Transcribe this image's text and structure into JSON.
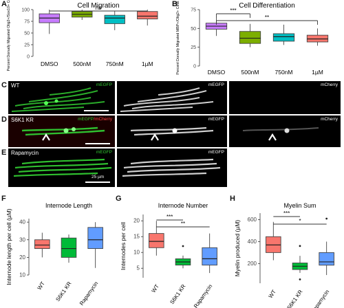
{
  "figure": {
    "panelA": {
      "letter": "A",
      "chart_data": {
        "type": "box",
        "title": "Cell Migration",
        "ylabel": "Percent Dorsally Migrated Olig2+/Sox10+ Cells",
        "categories": [
          "DMSO",
          "500nM",
          "750nM",
          "1µM"
        ],
        "colors": [
          "#c77cff",
          "#7cae00",
          "#00bfc4",
          "#f8766d"
        ],
        "ylim": [
          0,
          100
        ],
        "yticks": [
          0,
          25,
          50,
          75,
          100
        ],
        "boxes": [
          {
            "min": 48,
            "q1": 72,
            "median": 82,
            "q3": 91,
            "max": 100
          },
          {
            "min": 78,
            "q1": 84,
            "median": 90,
            "q3": 96,
            "max": 100
          },
          {
            "min": 56,
            "q1": 70,
            "median": 82,
            "q3": 88,
            "max": 97
          },
          {
            "min": 66,
            "q1": 80,
            "median": 86,
            "q3": 96,
            "max": 100
          }
        ],
        "significance": [
          {
            "from": 0,
            "to": 3,
            "label": "ns"
          }
        ]
      }
    },
    "panelB": {
      "letter": "B",
      "chart_data": {
        "type": "box",
        "title": "Cell Differentiation",
        "ylabel": "Percent Dorsally Migrated MBP+/Olig2+ Cells",
        "categories": [
          "DMSO",
          "500nM",
          "750nM",
          "1µM"
        ],
        "colors": [
          "#c77cff",
          "#7cae00",
          "#00bfc4",
          "#f8766d"
        ],
        "ylim": [
          0,
          75
        ],
        "yticks": [
          0,
          25,
          50,
          75
        ],
        "boxes": [
          {
            "min": 40,
            "q1": 49,
            "median": 53,
            "q3": 57,
            "max": 64
          },
          {
            "min": 25,
            "q1": 30,
            "median": 37,
            "q3": 46,
            "max": 56
          },
          {
            "min": 28,
            "q1": 33,
            "median": 39,
            "q3": 43,
            "max": 55
          },
          {
            "min": 27,
            "q1": 32,
            "median": 36,
            "q3": 41,
            "max": 50
          }
        ],
        "significance": [
          {
            "from": 0,
            "to": 1,
            "label": "***"
          },
          {
            "from": 0,
            "to": 3,
            "label": "**"
          }
        ]
      }
    },
    "microscopy": {
      "panelC": {
        "letter": "C",
        "title": "WT",
        "channels": [
          "mEGFP",
          "mEGFP",
          "mCherry"
        ]
      },
      "panelD": {
        "letter": "D",
        "title": "S6K1 KR",
        "channels": [
          "mEGFP/mCherry",
          "mEGFP",
          "mCherry"
        ],
        "merged_green": "mEGFP",
        "merged_red": "/mCherry"
      },
      "panelE": {
        "letter": "E",
        "title": "Rapamycin",
        "channels": [
          "mEGFP",
          "mEGFP"
        ],
        "scale": "25 µm"
      },
      "colors": {
        "green": "#33cc33",
        "gray": "#cfcfcf",
        "red": "#cc3333"
      }
    },
    "panelF": {
      "letter": "F",
      "chart_data": {
        "type": "box",
        "title": "Internode Length",
        "ylabel": "Internode length per cell (µM)",
        "categories": [
          "WT",
          "S6K1 KR",
          "Rapamycin"
        ],
        "colors": [
          "#f8766d",
          "#00ba38",
          "#619cff"
        ],
        "ylim": [
          10,
          42
        ],
        "yticks": [
          10,
          20,
          30,
          40
        ],
        "boxes": [
          {
            "min": 20,
            "q1": 25,
            "median": 27,
            "q3": 30,
            "max": 34
          },
          {
            "min": 17,
            "q1": 20,
            "median": 25,
            "q3": 31,
            "max": 33
          },
          {
            "min": 14,
            "q1": 25,
            "median": 30,
            "q3": 37,
            "max": 40
          }
        ],
        "outliers": [],
        "significance": []
      }
    },
    "panelG": {
      "letter": "G",
      "chart_data": {
        "type": "box",
        "title": "Internode Number",
        "ylabel": "Internodes per cell",
        "categories": [
          "WT",
          "S6K1 KR",
          "Rapamycin"
        ],
        "colors": [
          "#f8766d",
          "#00ba38",
          "#619cff"
        ],
        "ylim": [
          2,
          22
        ],
        "yticks": [
          5,
          10,
          15,
          20
        ],
        "boxes": [
          {
            "min": 9,
            "q1": 11.5,
            "median": 13.5,
            "q3": 16,
            "max": 20
          },
          {
            "min": 5,
            "q1": 6,
            "median": 7,
            "q3": 8,
            "max": 9
          },
          {
            "min": 3.5,
            "q1": 6,
            "median": 8,
            "q3": 11.5,
            "max": 16
          }
        ],
        "outliers": [
          {
            "series": 1,
            "value": 12
          }
        ],
        "significance": [
          {
            "from": 0,
            "to": 1,
            "label": "***"
          },
          {
            "from": 0,
            "to": 2,
            "label": "**"
          }
        ]
      }
    },
    "panelH": {
      "letter": "H",
      "chart_data": {
        "type": "box",
        "title": "Myelin Sum",
        "ylabel": "Myelin produced (µM)",
        "categories": [
          "WT",
          "S6K1 KR",
          "Rapamycin"
        ],
        "colors": [
          "#f8766d",
          "#00ba38",
          "#619cff"
        ],
        "ylim": [
          20,
          660
        ],
        "yticks": [
          200,
          400,
          600
        ],
        "boxes": [
          {
            "min": 230,
            "q1": 300,
            "median": 370,
            "q3": 445,
            "max": 580
          },
          {
            "min": 115,
            "q1": 145,
            "median": 175,
            "q3": 205,
            "max": 270
          },
          {
            "min": 95,
            "q1": 185,
            "median": 215,
            "q3": 300,
            "max": 400
          }
        ],
        "outliers": [
          {
            "series": 1,
            "value": 360
          },
          {
            "series": 1,
            "value": 55
          },
          {
            "series": 2,
            "value": 610
          }
        ],
        "significance": [
          {
            "from": 0,
            "to": 1,
            "label": "***"
          },
          {
            "from": 0,
            "to": 2,
            "label": "*"
          }
        ]
      }
    }
  }
}
